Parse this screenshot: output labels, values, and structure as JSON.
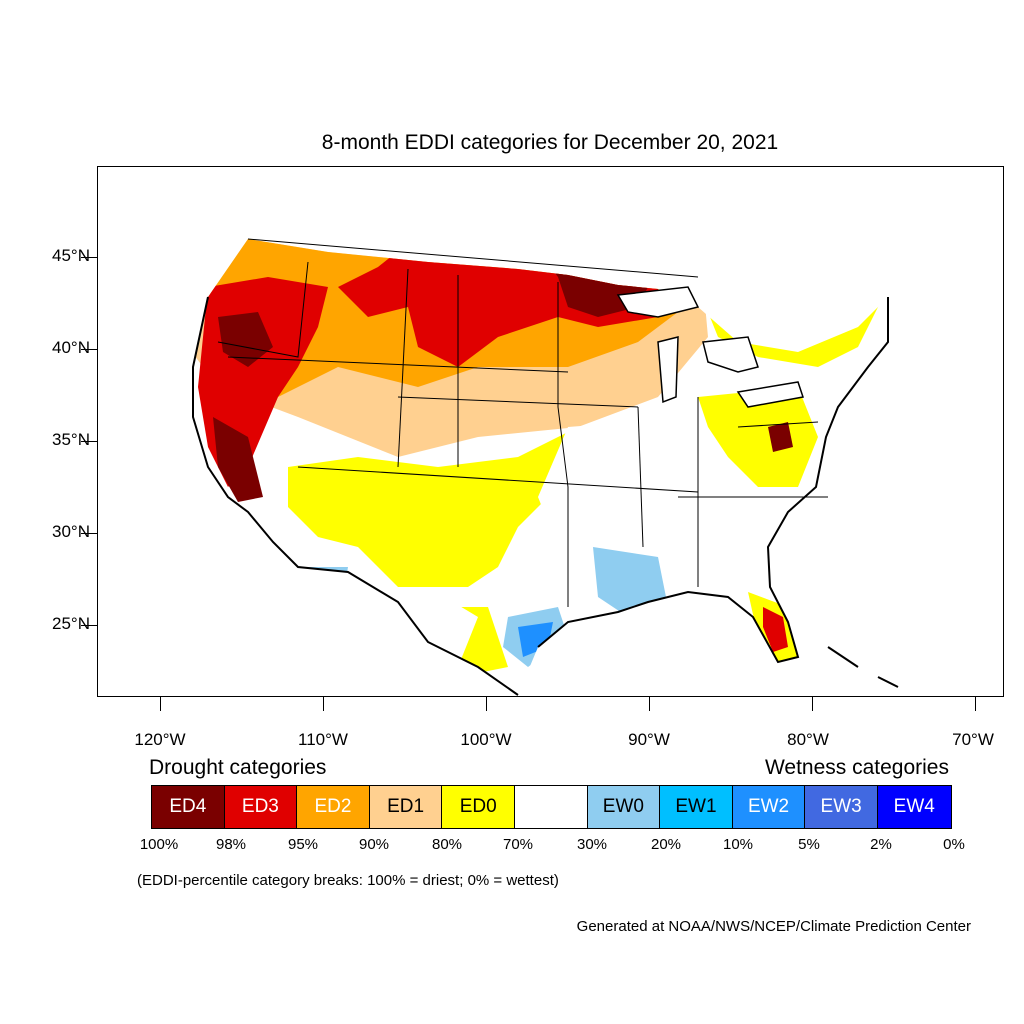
{
  "title": "8-month EDDI categories for December 20, 2021",
  "map": {
    "lat_labels": [
      "45°N",
      "40°N",
      "35°N",
      "30°N",
      "25°N"
    ],
    "lon_labels": [
      "120°W",
      "110°W",
      "100°W",
      "90°W",
      "80°W",
      "70°W"
    ]
  },
  "legend": {
    "drought_title": "Drought categories",
    "wetness_title": "Wetness categories",
    "categories": [
      {
        "label": "ED4",
        "color": "#7a0000",
        "text_color": "#ffffff"
      },
      {
        "label": "ED3",
        "color": "#e00000",
        "text_color": "#ffffff"
      },
      {
        "label": "ED2",
        "color": "#ffa500",
        "text_color": "#ffffff"
      },
      {
        "label": "ED1",
        "color": "#ffd090",
        "text_color": "#000000"
      },
      {
        "label": "ED0",
        "color": "#ffff00",
        "text_color": "#000000"
      },
      {
        "label": "",
        "color": "#ffffff",
        "text_color": "#000000"
      },
      {
        "label": "EW0",
        "color": "#8fcdf0",
        "text_color": "#000000"
      },
      {
        "label": "EW1",
        "color": "#00bfff",
        "text_color": "#000000"
      },
      {
        "label": "EW2",
        "color": "#1e90ff",
        "text_color": "#ffffff"
      },
      {
        "label": "EW3",
        "color": "#4169e1",
        "text_color": "#ffffff"
      },
      {
        "label": "EW4",
        "color": "#0000ff",
        "text_color": "#ffffff"
      }
    ],
    "breaks": [
      "100%",
      "98%",
      "95%",
      "90%",
      "80%",
      "70%",
      "30%",
      "20%",
      "10%",
      "5%",
      "2%",
      "0%"
    ]
  },
  "note": "(EDDI-percentile category breaks: 100% = driest; 0% = wettest)",
  "credit": "Generated at NOAA/NWS/NCEP/Climate Prediction Center"
}
